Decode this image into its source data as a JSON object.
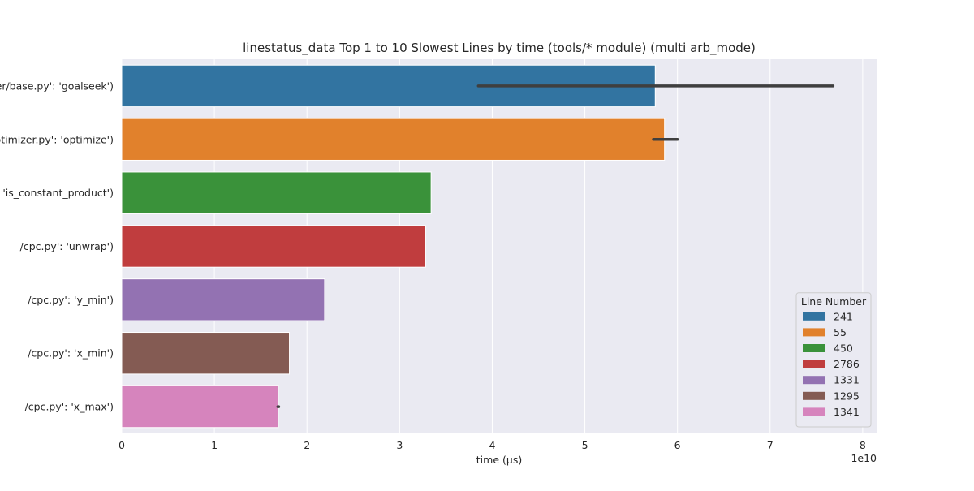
{
  "chart_data": {
    "type": "bar",
    "orientation": "horizontal",
    "title": "linestatus_data Top 1 to 10 Slowest Lines by time (tools/* module) (multi arb_mode)",
    "xlabel": "time (µs)",
    "ylabel": "",
    "x_scale_label": "1e10",
    "x_scale_factor": 10000000000,
    "xlim": [
      0,
      8.15
    ],
    "xticks": [
      0,
      1,
      2,
      3,
      4,
      5,
      6,
      7,
      8
    ],
    "grid": true,
    "categories": [
      "er/base.py': 'goalseek')",
      "optimizer.py': 'optimize')",
      ": 'is_constant_product')",
      "/cpc.py': 'unwrap')",
      "/cpc.py': 'y_min')",
      "/cpc.py': 'x_min')",
      "/cpc.py': 'x_max')"
    ],
    "values": [
      5.76,
      5.86,
      3.34,
      3.28,
      2.19,
      1.81,
      1.69
    ],
    "error_low": [
      3.85,
      5.74,
      null,
      null,
      null,
      null,
      1.685
    ],
    "error_high": [
      7.68,
      6.0,
      null,
      null,
      null,
      null,
      1.695
    ],
    "colors": [
      "#3274a1",
      "#e1812c",
      "#3a923a",
      "#c03d3e",
      "#9372b2",
      "#845b53",
      "#d684bd"
    ],
    "legend": {
      "title": "Line Number",
      "placement": "lower-right",
      "entries": [
        "241",
        "55",
        "450",
        "2786",
        "1331",
        "1295",
        "1341"
      ]
    }
  }
}
